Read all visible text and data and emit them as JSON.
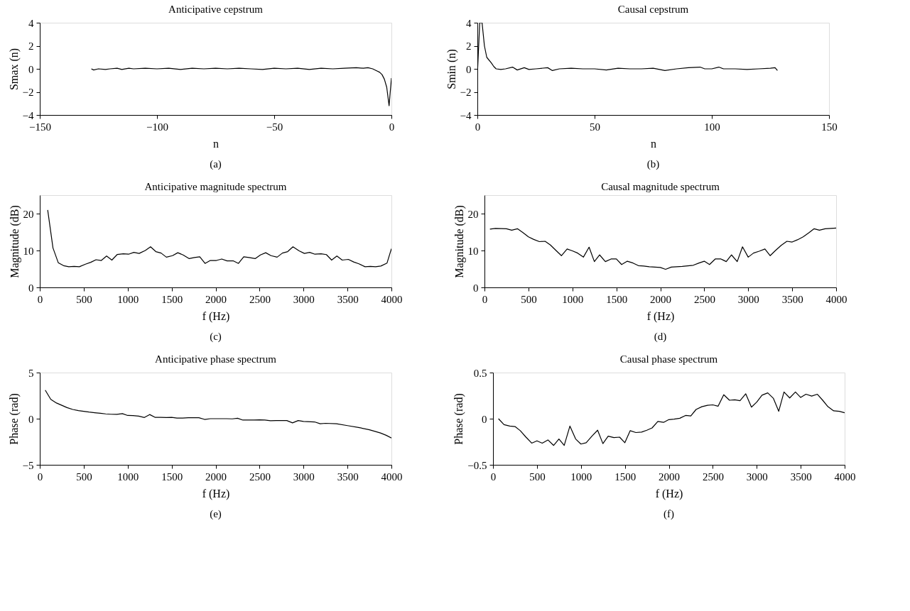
{
  "chart_data": [
    {
      "type": "line",
      "title": "Anticipative cepstrum",
      "xlabel": "n",
      "ylabel": "Smax (n)",
      "annotations": [
        "(a)"
      ],
      "color": "#000000",
      "grid": false,
      "x": [
        -128,
        -127,
        -125,
        -122,
        -120,
        -117,
        -115,
        -112,
        -110,
        -105,
        -100,
        -95,
        -90,
        -85,
        -80,
        -75,
        -70,
        -65,
        -60,
        -55,
        -50,
        -45,
        -40,
        -35,
        -30,
        -25,
        -20,
        -15,
        -12,
        -10,
        -8,
        -6,
        -5,
        -4,
        -3,
        -2,
        -1,
        0
      ],
      "values": [
        0,
        -0.1,
        0,
        -0.05,
        0,
        0.05,
        -0.05,
        0.05,
        0,
        0.05,
        0,
        0.05,
        -0.05,
        0.05,
        0,
        0.05,
        0,
        0.05,
        0,
        -0.05,
        0.05,
        0,
        0.05,
        -0.05,
        0.05,
        0,
        0.05,
        0.1,
        0.05,
        0.1,
        0,
        -0.2,
        -0.3,
        -0.5,
        -0.9,
        -1.6,
        -3.2,
        -0.8
      ],
      "xlim": [
        -150,
        0
      ],
      "xticks": [
        -150,
        -100,
        -50,
        0
      ],
      "ylim": [
        -4,
        4
      ],
      "yticks": [
        -4,
        -2,
        0,
        2,
        4
      ]
    },
    {
      "type": "line",
      "title": "Causal cepstrum",
      "xlabel": "n",
      "ylabel": "Smin (n)",
      "annotations": [
        "(b)"
      ],
      "color": "#000000",
      "grid": false,
      "x": [
        0,
        1,
        2,
        3,
        4,
        6,
        7,
        8,
        10,
        12,
        15,
        17,
        20,
        22,
        25,
        30,
        32,
        35,
        40,
        45,
        50,
        55,
        60,
        65,
        70,
        75,
        80,
        85,
        90,
        95,
        97,
        100,
        103,
        105,
        110,
        115,
        120,
        125,
        127,
        128
      ],
      "values": [
        -0.5,
        4,
        4,
        2,
        1,
        0.5,
        0.2,
        0,
        -0.05,
        0,
        0.15,
        -0.1,
        0.1,
        -0.05,
        0,
        0.1,
        -0.15,
        0,
        0.05,
        0,
        0,
        -0.1,
        0.05,
        0,
        0,
        0.05,
        -0.15,
        0,
        0.1,
        0.15,
        0,
        0,
        0.15,
        0,
        0,
        -0.05,
        0,
        0.05,
        0.1,
        -0.15
      ],
      "xlim": [
        0,
        150
      ],
      "xticks": [
        0,
        50,
        100,
        150
      ],
      "ylim": [
        -4,
        4
      ],
      "yticks": [
        -4,
        -2,
        0,
        2,
        4
      ]
    },
    {
      "type": "line",
      "title": "Anticipative magnitude spectrum",
      "xlabel": "f (Hz)",
      "ylabel": "Magnitude (dB)",
      "annotations": [
        "(c)"
      ],
      "color": "#000000",
      "grid": false,
      "x": [
        90,
        150,
        210,
        270,
        330,
        390,
        450,
        520,
        580,
        640,
        700,
        760,
        820,
        880,
        950,
        1010,
        1070,
        1130,
        1200,
        1260,
        1320,
        1380,
        1440,
        1510,
        1570,
        1630,
        1700,
        1760,
        1820,
        1880,
        1940,
        2010,
        2070,
        2130,
        2200,
        2260,
        2320,
        2380,
        2450,
        2510,
        2570,
        2630,
        2700,
        2760,
        2820,
        2880,
        2950,
        3010,
        3070,
        3130,
        3200,
        3260,
        3320,
        3380,
        3440,
        3510,
        3570,
        3630,
        3700,
        3760,
        3820,
        3880,
        3950,
        4000
      ],
      "values": [
        21,
        10.7,
        6.7,
        5.9,
        5.6,
        5.7,
        5.6,
        6.3,
        6.8,
        7.5,
        7.3,
        8.5,
        7.4,
        8.9,
        9.1,
        9.0,
        9.5,
        9.2,
        10.0,
        11.0,
        9.7,
        9.3,
        8.2,
        8.6,
        9.4,
        8.8,
        7.8,
        8.1,
        8.3,
        6.5,
        7.3,
        7.3,
        7.7,
        7.2,
        7.2,
        6.5,
        8.3,
        8.1,
        7.8,
        8.8,
        9.4,
        8.6,
        8.2,
        9.3,
        9.7,
        11.0,
        9.9,
        9.2,
        9.5,
        9.0,
        9.1,
        8.9,
        7.4,
        8.5,
        7.4,
        7.6,
        6.9,
        6.4,
        5.6,
        5.7,
        5.6,
        5.8,
        6.6,
        10.5
      ],
      "xlim": [
        0,
        4000
      ],
      "xticks": [
        0,
        500,
        1000,
        1500,
        2000,
        2500,
        3000,
        3500,
        4000
      ],
      "ylim": [
        0,
        25
      ],
      "yticks": [
        0,
        10,
        20
      ]
    },
    {
      "type": "line",
      "title": "Causal magnitude spectrum",
      "xlabel": "f (Hz)",
      "ylabel": "Magnitude (dB)",
      "annotations": [
        "(d)"
      ],
      "color": "#000000",
      "grid": false,
      "x": [
        62,
        125,
        250,
        310,
        375,
        440,
        500,
        560,
        625,
        690,
        750,
        810,
        875,
        940,
        1000,
        1060,
        1125,
        1190,
        1250,
        1310,
        1375,
        1440,
        1500,
        1560,
        1625,
        1690,
        1750,
        1810,
        1875,
        2000,
        2060,
        2125,
        2250,
        2375,
        2440,
        2500,
        2560,
        2625,
        2690,
        2750,
        2810,
        2875,
        2935,
        3000,
        3060,
        3125,
        3190,
        3250,
        3310,
        3375,
        3440,
        3500,
        3560,
        3625,
        3690,
        3750,
        3810,
        3875,
        4000
      ],
      "values": [
        15.8,
        16.0,
        15.9,
        15.5,
        15.9,
        14.8,
        13.7,
        13.0,
        12.4,
        12.5,
        11.5,
        10.1,
        8.6,
        10.4,
        9.9,
        9.3,
        8.2,
        10.9,
        7.0,
        8.8,
        7.0,
        7.7,
        7.7,
        6.2,
        7.1,
        6.6,
        5.9,
        5.8,
        5.6,
        5.4,
        4.9,
        5.5,
        5.7,
        6.0,
        6.6,
        7.1,
        6.2,
        7.7,
        7.7,
        7.0,
        8.8,
        7.0,
        11.0,
        8.2,
        9.3,
        9.8,
        10.4,
        8.6,
        10.0,
        11.4,
        12.5,
        12.3,
        12.9,
        13.7,
        14.8,
        15.9,
        15.5,
        15.9,
        16.1
      ],
      "xlim": [
        0,
        4000
      ],
      "xticks": [
        0,
        500,
        1000,
        1500,
        2000,
        2500,
        3000,
        3500,
        4000
      ],
      "ylim": [
        0,
        25
      ],
      "yticks": [
        0,
        10,
        20
      ]
    },
    {
      "type": "line",
      "title": "Anticipative phase spectrum",
      "xlabel": "f (Hz)",
      "ylabel": "Phase (rad)",
      "annotations": [
        "(e)"
      ],
      "color": "#000000",
      "grid": false,
      "x": [
        62,
        125,
        190,
        250,
        310,
        375,
        440,
        500,
        560,
        625,
        690,
        750,
        810,
        875,
        940,
        1000,
        1060,
        1125,
        1190,
        1250,
        1310,
        1375,
        1440,
        1500,
        1560,
        1625,
        1690,
        1750,
        1810,
        1875,
        1940,
        2000,
        2125,
        2190,
        2250,
        2310,
        2440,
        2500,
        2560,
        2625,
        2690,
        2810,
        2875,
        2940,
        3000,
        3125,
        3190,
        3250,
        3375,
        3500,
        3625,
        3750,
        3875,
        3940,
        4000
      ],
      "values": [
        3.1,
        2.1,
        1.7,
        1.45,
        1.2,
        1.0,
        0.88,
        0.8,
        0.72,
        0.65,
        0.58,
        0.52,
        0.48,
        0.47,
        0.55,
        0.35,
        0.33,
        0.28,
        0.13,
        0.45,
        0.15,
        0.15,
        0.12,
        0.15,
        0.07,
        0.07,
        0.1,
        0.1,
        0.1,
        -0.08,
        0,
        0,
        0,
        -0.02,
        0.05,
        -0.15,
        -0.15,
        -0.12,
        -0.15,
        -0.22,
        -0.2,
        -0.2,
        -0.45,
        -0.2,
        -0.3,
        -0.35,
        -0.55,
        -0.5,
        -0.55,
        -0.75,
        -0.95,
        -1.2,
        -1.55,
        -1.8,
        -2.1
      ],
      "xlim": [
        0,
        4000
      ],
      "xticks": [
        0,
        500,
        1000,
        1500,
        2000,
        2500,
        3000,
        3500,
        4000
      ],
      "ylim": [
        -5,
        5
      ],
      "yticks": [
        -5,
        0,
        5
      ]
    },
    {
      "type": "line",
      "title": "Causal phase spectrum",
      "xlabel": "f (Hz)",
      "ylabel": "Phase (rad)",
      "annotations": [
        "(f)"
      ],
      "color": "#000000",
      "grid": false,
      "x": [
        62,
        125,
        190,
        250,
        310,
        375,
        440,
        500,
        560,
        625,
        690,
        750,
        810,
        875,
        940,
        1000,
        1060,
        1125,
        1190,
        1250,
        1310,
        1375,
        1440,
        1500,
        1560,
        1625,
        1690,
        1750,
        1810,
        1875,
        1940,
        2000,
        2060,
        2125,
        2190,
        2250,
        2310,
        2375,
        2440,
        2500,
        2560,
        2625,
        2690,
        2750,
        2810,
        2875,
        2940,
        3000,
        3060,
        3125,
        3190,
        3250,
        3310,
        3375,
        3440,
        3500,
        3560,
        3625,
        3690,
        3750,
        3810,
        3875,
        3940,
        4000
      ],
      "values": [
        0,
        -0.065,
        -0.08,
        -0.085,
        -0.13,
        -0.2,
        -0.265,
        -0.24,
        -0.265,
        -0.23,
        -0.29,
        -0.22,
        -0.29,
        -0.08,
        -0.22,
        -0.275,
        -0.26,
        -0.19,
        -0.125,
        -0.27,
        -0.19,
        -0.205,
        -0.2,
        -0.26,
        -0.13,
        -0.15,
        -0.145,
        -0.125,
        -0.1,
        -0.03,
        -0.04,
        -0.01,
        -0.005,
        0.005,
        0.035,
        0.03,
        0.1,
        0.13,
        0.145,
        0.15,
        0.135,
        0.26,
        0.2,
        0.205,
        0.195,
        0.27,
        0.125,
        0.18,
        0.255,
        0.28,
        0.22,
        0.08,
        0.29,
        0.225,
        0.29,
        0.23,
        0.265,
        0.245,
        0.265,
        0.2,
        0.13,
        0.085,
        0.08,
        0.065
      ],
      "xlim": [
        0,
        4000
      ],
      "xticks": [
        0,
        500,
        1000,
        1500,
        2000,
        2500,
        3000,
        3500,
        4000
      ],
      "ylim": [
        -0.5,
        0.5
      ],
      "yticks": [
        -0.5,
        0,
        0.5
      ]
    }
  ]
}
